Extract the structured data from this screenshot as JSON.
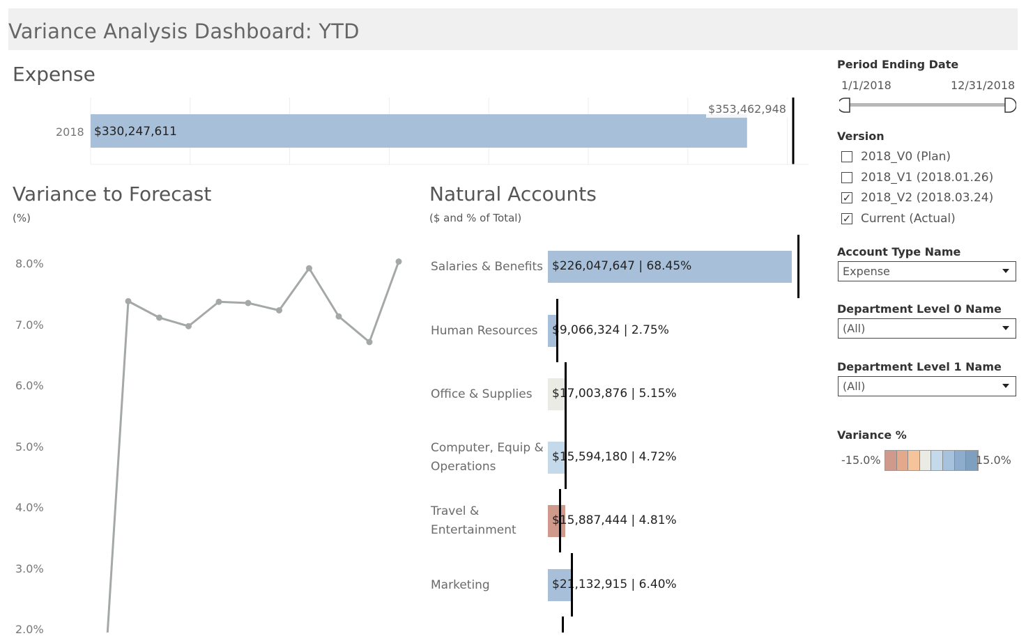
{
  "dashboard": {
    "title": "Variance Analysis Dashboard: YTD"
  },
  "expense": {
    "title": "Expense",
    "year_label": "2018",
    "actual_label": "$330,247,611",
    "target_label": "$353,462,948",
    "actual_value": 330247611,
    "target_value": 353462948,
    "color": "#a7bfd8"
  },
  "variance_forecast": {
    "title": "Variance to Forecast",
    "subtitle": "(%)"
  },
  "natural_accounts": {
    "title": "Natural Accounts",
    "subtitle": "($ and % of Total)"
  },
  "filters": {
    "period": {
      "title": "Period Ending Date",
      "start": "1/1/2018",
      "end": "12/31/2018"
    },
    "version": {
      "title": "Version",
      "options": [
        {
          "label": "2018_V0 (Plan)",
          "checked": false,
          "mark": ""
        },
        {
          "label": "2018_V1 (2018.01.26)",
          "checked": false,
          "mark": ""
        },
        {
          "label": "2018_V2 (2018.03.24)",
          "checked": true,
          "mark": "✓"
        },
        {
          "label": "Current (Actual)",
          "checked": true,
          "mark": "✓"
        }
      ]
    },
    "account_type": {
      "title": "Account Type Name",
      "value": "Expense"
    },
    "dept0": {
      "title": "Department Level 0 Name",
      "value": "(All)"
    },
    "dept1": {
      "title": "Department Level 1 Name",
      "value": "(All)"
    }
  },
  "legend": {
    "title": "Variance %",
    "min_label": "-15.0%",
    "max_label": "15.0%",
    "colors": [
      "#cf9a8b",
      "#e3a98a",
      "#f5c49b",
      "#ebebe6",
      "#c4d9ea",
      "#a7c2dd",
      "#8eaccb",
      "#7f9fbe"
    ]
  },
  "chart_data": [
    {
      "type": "line",
      "title": "Variance to Forecast",
      "ylabel": "(%)",
      "ylim": [
        2.0,
        8.0
      ],
      "y_ticks": [
        "8.0%",
        "7.0%",
        "6.0%",
        "5.0%",
        "4.0%",
        "3.0%",
        "2.0%"
      ],
      "y_tick_values": [
        8.0,
        7.0,
        6.0,
        5.0,
        4.0,
        3.0,
        2.0
      ],
      "y_min_visible": 1.9,
      "values": [
        1.9,
        7.39,
        7.12,
        6.98,
        7.38,
        7.36,
        7.24,
        7.93,
        7.14,
        6.72,
        8.04
      ],
      "line_color": "#a4a8a7"
    },
    {
      "type": "bar",
      "title": "Natural Accounts",
      "subtitle": "($ and % of Total)",
      "categories": [
        "Salaries & Benefits",
        "Human Resources",
        "Office & Supplies",
        "Computer, Equip & Operations",
        "Travel & Entertainment",
        "Marketing"
      ],
      "category_lines": [
        [
          "Salaries & Benefits"
        ],
        [
          "Human Resources"
        ],
        [
          "Office & Supplies"
        ],
        [
          "Computer, Equip &",
          "Operations"
        ],
        [
          "Travel &",
          "Entertainment"
        ],
        [
          "Marketing"
        ]
      ],
      "values": [
        226047647,
        9066324,
        17003876,
        15594180,
        15887444,
        21132915
      ],
      "labels": [
        "$226,047,647 | 68.45%",
        "$9,066,324 | 2.75%",
        "$17,003,876 | 5.15%",
        "$15,594,180 | 4.72%",
        "$15,887,444 | 4.81%",
        "$21,132,915 | 6.40%"
      ],
      "targets": [
        232000000,
        8500000,
        16700000,
        16400000,
        11200000,
        22500000
      ],
      "colors": [
        "#a7bfd8",
        "#a7bfd8",
        "#ebebe6",
        "#c4d9ea",
        "#cf9a8b",
        "#a7bfd8"
      ],
      "xlim": [
        0,
        226047647
      ]
    }
  ]
}
